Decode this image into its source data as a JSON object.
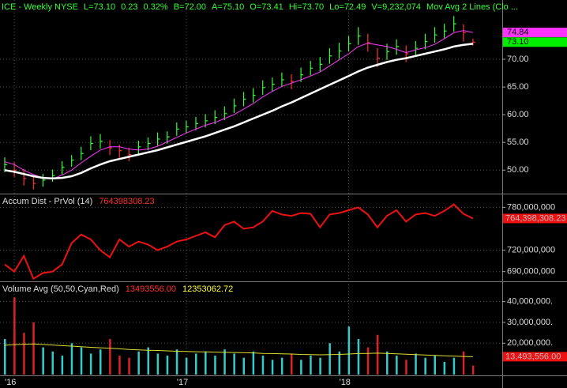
{
  "chart_data": [
    {
      "type": "ohlc",
      "title": "ICE - Weekly  NYSE",
      "quote_color": "#33ff33",
      "quote": [
        "L=73.10",
        "0.23",
        "0.32%",
        "B=72.00",
        "A=75.10",
        "O=73.41",
        "Hi=73.70",
        "Lo=72.49",
        "V=9,232,074",
        "Mov Avg 2 Lines (Clo ..."
      ],
      "categories": [
        null,
        "'16",
        null,
        null,
        null,
        null,
        null,
        null,
        null,
        null,
        null,
        null,
        null,
        null,
        null,
        null,
        null,
        null,
        null,
        "'17",
        null,
        null,
        null,
        null,
        null,
        null,
        null,
        null,
        null,
        null,
        null,
        null,
        null,
        null,
        null,
        null,
        "'18",
        null,
        null,
        null,
        null,
        null,
        null,
        null,
        null,
        null,
        null,
        null,
        null,
        null
      ],
      "high": [
        52.3,
        51.4,
        50.2,
        48.9,
        49.3,
        50.1,
        51.6,
        52.7,
        54.2,
        56.1,
        56.5,
        55.4,
        54.6,
        54.0,
        55.3,
        55.9,
        56.8,
        57.0,
        58.6,
        58.9,
        59.6,
        60.1,
        60.8,
        61.5,
        62.9,
        64.1,
        64.8,
        66.2,
        66.7,
        67.6,
        67.3,
        68.5,
        69.7,
        70.4,
        72.0,
        73.0,
        74.2,
        75.8,
        74.6,
        72.0,
        72.8,
        73.6,
        72.5,
        73.3,
        74.6,
        75.8,
        76.4,
        77.8,
        76.3,
        73.7
      ],
      "low": [
        49.6,
        48.8,
        47.2,
        46.5,
        47.0,
        47.9,
        49.2,
        50.6,
        51.8,
        53.6,
        53.9,
        52.7,
        52.2,
        51.6,
        52.9,
        53.6,
        54.4,
        54.8,
        56.2,
        56.6,
        57.2,
        57.7,
        58.3,
        59.0,
        60.3,
        61.5,
        62.2,
        63.6,
        64.2,
        65.0,
        64.6,
        65.9,
        67.1,
        67.8,
        69.2,
        70.1,
        71.4,
        72.6,
        71.4,
        68.6,
        69.9,
        70.8,
        69.5,
        70.6,
        71.8,
        73.0,
        73.8,
        75.0,
        73.2,
        72.49
      ],
      "close": [
        51.0,
        50.0,
        48.5,
        47.6,
        48.2,
        49.0,
        50.5,
        51.8,
        53.0,
        54.8,
        55.2,
        54.0,
        53.5,
        52.8,
        54.2,
        54.8,
        55.6,
        56.0,
        57.4,
        57.8,
        58.4,
        58.9,
        59.5,
        60.2,
        61.6,
        62.8,
        63.5,
        64.9,
        65.5,
        66.3,
        66.0,
        67.2,
        68.4,
        69.1,
        70.6,
        71.5,
        72.8,
        74.2,
        73.0,
        70.2,
        71.4,
        72.3,
        71.0,
        72.0,
        73.2,
        74.4,
        75.1,
        76.4,
        74.8,
        73.1
      ],
      "up_color": "#33ff33",
      "down_color": "#ff3333",
      "overlays": [
        {
          "color": "#ff33ff",
          "values": [
            51.5,
            51.0,
            50.0,
            49.2,
            48.6,
            48.4,
            49.1,
            50.0,
            51.3,
            52.5,
            53.6,
            54.2,
            54.2,
            53.8,
            53.6,
            53.8,
            54.3,
            55.1,
            55.9,
            56.7,
            57.4,
            58.1,
            58.6,
            59.3,
            60.0,
            61.0,
            62.0,
            63.2,
            64.2,
            65.1,
            65.7,
            66.3,
            67.0,
            67.7,
            68.8,
            69.9,
            71.0,
            72.3,
            72.9,
            72.6,
            72.3,
            71.8,
            71.2,
            71.7,
            72.1,
            72.7,
            73.7,
            74.8,
            75.2,
            74.84
          ]
        },
        {
          "color": "#ffffff",
          "values": [
            50.0,
            49.7,
            49.3,
            48.9,
            48.6,
            48.5,
            48.6,
            48.9,
            49.5,
            50.3,
            51.0,
            51.6,
            52.0,
            52.4,
            52.8,
            53.2,
            53.6,
            54.1,
            54.6,
            55.1,
            55.6,
            56.1,
            56.7,
            57.3,
            57.9,
            58.6,
            59.3,
            60.0,
            60.7,
            61.5,
            62.2,
            63.0,
            63.8,
            64.6,
            65.4,
            66.2,
            67.0,
            67.8,
            68.5,
            69.0,
            69.5,
            69.9,
            70.2,
            70.6,
            71.0,
            71.4,
            71.8,
            72.3,
            72.6,
            72.8
          ]
        }
      ],
      "markers": [
        {
          "value": 74.84,
          "label": "74.84",
          "color": "#ff33ff"
        },
        {
          "value": 73.1,
          "label": "73.10",
          "color": "#00ee00"
        }
      ],
      "ylim": [
        45.9,
        80.7
      ],
      "yticks": [
        {
          "value": 50,
          "label": "50.00"
        },
        {
          "value": 55,
          "label": "55.00"
        },
        {
          "value": 60,
          "label": "60.00"
        },
        {
          "value": 65,
          "label": "65.00"
        },
        {
          "value": 70,
          "label": "70.00"
        }
      ]
    },
    {
      "type": "line",
      "title": "Accum Dist - PrVol (14)",
      "legend": [
        {
          "text": "764398308.23",
          "color": "#ff3030"
        }
      ],
      "color": "#ee1111",
      "values": [
        700000000,
        690000000,
        712000000,
        680000000,
        688000000,
        690000000,
        700000000,
        730000000,
        742000000,
        735000000,
        720000000,
        710000000,
        735000000,
        725000000,
        732000000,
        728000000,
        720000000,
        725000000,
        732000000,
        735000000,
        740000000,
        745000000,
        738000000,
        755000000,
        760000000,
        750000000,
        752000000,
        760000000,
        775000000,
        770000000,
        768000000,
        772000000,
        771000000,
        752000000,
        770000000,
        772000000,
        776000000,
        780000000,
        770000000,
        752000000,
        768000000,
        776000000,
        760000000,
        770000000,
        772000000,
        768000000,
        775000000,
        784000000,
        771000000,
        764398308.23
      ],
      "last": {
        "value": 764398308.23,
        "label": "764,398,308.23",
        "color": "#ee1111"
      },
      "ylim": [
        677500000,
        797000000
      ],
      "yticks": [
        {
          "value": 690000000,
          "label": "690,000,000"
        },
        {
          "value": 720000000,
          "label": "720,000,000"
        },
        {
          "value": 780000000,
          "label": "780,000,000"
        }
      ]
    },
    {
      "type": "bar",
      "title": "Volume Avg (50,50,Cyan,Red)",
      "legend": [
        {
          "text": "13493556.00",
          "color": "#ff3030"
        },
        {
          "text": "12353062.72",
          "color": "#ffff33"
        }
      ],
      "up_color": "#33cccc",
      "down_color": "#dd2222",
      "values": [
        22000000,
        42000000,
        25000000,
        30000000,
        18000000,
        16000000,
        14000000,
        20000000,
        18000000,
        15000000,
        17000000,
        22000000,
        14000000,
        13000000,
        16000000,
        18000000,
        15000000,
        14000000,
        17000000,
        13000000,
        15000000,
        16000000,
        14000000,
        17000000,
        15000000,
        13000000,
        16000000,
        14000000,
        12000000,
        13000000,
        15000000,
        12000000,
        14000000,
        13000000,
        20000000,
        16000000,
        28000000,
        22000000,
        18000000,
        24000000,
        16000000,
        14000000,
        12000000,
        15000000,
        13000000,
        14000000,
        11000000,
        13000000,
        16000000,
        9232074
      ],
      "avg_color": "#dddd33",
      "avg": [
        19000000,
        19300000,
        19500000,
        19600000,
        19400000,
        19100000,
        18800000,
        18600000,
        18300000,
        18000000,
        17800000,
        17600000,
        17300000,
        17000000,
        16800000,
        16600000,
        16500000,
        16300000,
        16100000,
        16000000,
        15900000,
        15800000,
        15700000,
        15600000,
        15500000,
        15400000,
        15300000,
        15100000,
        15000000,
        14900000,
        14800000,
        14600000,
        14500000,
        14400000,
        14500000,
        14600000,
        14800000,
        15000000,
        15100000,
        15200000,
        15100000,
        14900000,
        14700000,
        14500000,
        14300000,
        14100000,
        13900000,
        13800000,
        13600000,
        13493556
      ],
      "last": {
        "value": 13493556,
        "label": "13,493,556.00",
        "color": "#ee1111"
      },
      "ylim": [
        4900000,
        49000000
      ],
      "yticks": [
        {
          "value": 20000000,
          "label": "20,000,000."
        },
        {
          "value": 30000000,
          "label": "30,000,000."
        },
        {
          "value": 40000000,
          "label": "40,000,000."
        }
      ]
    }
  ]
}
